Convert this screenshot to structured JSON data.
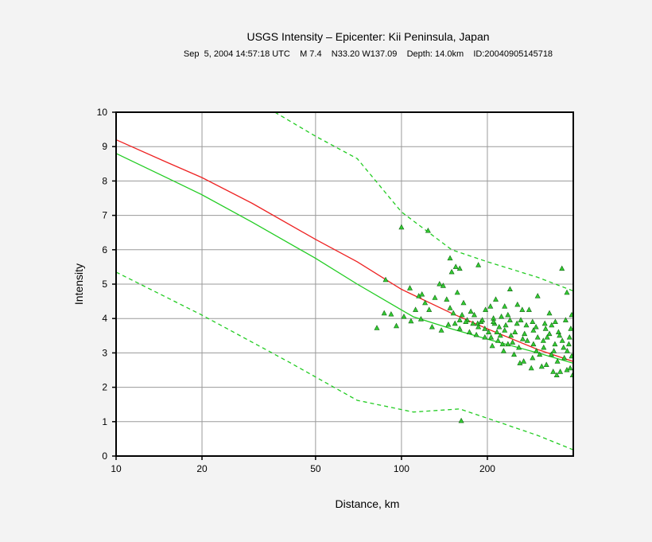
{
  "chart_data": {
    "type": "scatter",
    "title": "USGS Intensity –  Epicenter: Kii Peninsula, Japan",
    "subtitle": "Sep  5, 2004 14:57:18 UTC    M 7.4    N33.20 W137.09    Depth: 14.0km    ID:20040905145718",
    "xlabel": "Distance, km",
    "ylabel": "Intensity",
    "x_scale": "log",
    "xlim": [
      10,
      400
    ],
    "ylim": [
      0,
      10
    ],
    "x_ticks": [
      10,
      20,
      50,
      100,
      200
    ],
    "y_ticks": [
      0,
      1,
      2,
      3,
      4,
      5,
      6,
      7,
      8,
      9,
      10
    ],
    "x_tick_labels": [
      "10",
      "20",
      "50",
      "100",
      "200"
    ],
    "y_tick_labels": [
      "0",
      "1",
      "2",
      "3",
      "4",
      "5",
      "6",
      "7",
      "8",
      "9",
      "10"
    ],
    "grid": true,
    "colors": {
      "red_curve": "#ee2222",
      "green_curve": "#22cc22",
      "marker_fill": "#33cc33",
      "marker_edge": "#116611",
      "grid": "#9a9a9a"
    },
    "series": [
      {
        "style": "solid",
        "color": "#ee2222",
        "x": [
          10,
          15,
          20,
          30,
          50,
          70,
          100,
          150,
          200,
          300,
          400
        ],
        "y": [
          9.2,
          8.55,
          8.1,
          7.35,
          6.3,
          5.65,
          4.85,
          4.15,
          3.7,
          3.1,
          2.75
        ]
      },
      {
        "style": "solid",
        "color": "#22cc22",
        "x": [
          10,
          15,
          20,
          30,
          50,
          70,
          100,
          110,
          150,
          200,
          300,
          400
        ],
        "y": [
          8.8,
          8.1,
          7.6,
          6.8,
          5.75,
          5.0,
          4.25,
          4.05,
          3.7,
          3.4,
          3.0,
          2.7
        ]
      },
      {
        "style": "dashed",
        "color": "#22cc22",
        "x": [
          36,
          50,
          70,
          100,
          150,
          200,
          300,
          400
        ],
        "y": [
          10,
          9.3,
          8.65,
          7.1,
          6.0,
          5.65,
          5.2,
          4.8
        ]
      },
      {
        "style": "dashed",
        "color": "#22cc22",
        "x": [
          10,
          20,
          40,
          70,
          110,
          160,
          200,
          300,
          400
        ],
        "y": [
          5.35,
          4.1,
          2.75,
          1.62,
          1.28,
          1.37,
          1.1,
          0.6,
          0.18
        ]
      }
    ],
    "points": [
      [
        100,
        6.65
      ],
      [
        124,
        6.55
      ],
      [
        186,
        5.55
      ],
      [
        148,
        5.75
      ],
      [
        155,
        5.5
      ],
      [
        150,
        5.35
      ],
      [
        160,
        5.45
      ],
      [
        88,
        5.12
      ],
      [
        107,
        4.88
      ],
      [
        115,
        4.65
      ],
      [
        118,
        4.7
      ],
      [
        121,
        4.45
      ],
      [
        125,
        4.25
      ],
      [
        131,
        4.6
      ],
      [
        136,
        5.0
      ],
      [
        140,
        4.95
      ],
      [
        144,
        4.55
      ],
      [
        148,
        4.3
      ],
      [
        152,
        4.15
      ],
      [
        157,
        4.75
      ],
      [
        163,
        4.1
      ],
      [
        165,
        4.45
      ],
      [
        170,
        3.95
      ],
      [
        175,
        4.2
      ],
      [
        180,
        4.1
      ],
      [
        185,
        3.85
      ],
      [
        190,
        3.9
      ],
      [
        197,
        4.25
      ],
      [
        205,
        4.35
      ],
      [
        214,
        4.55
      ],
      [
        220,
        3.75
      ],
      [
        230,
        4.35
      ],
      [
        240,
        4.85
      ],
      [
        255,
        4.4
      ],
      [
        265,
        4.25
      ],
      [
        280,
        4.25
      ],
      [
        300,
        4.65
      ],
      [
        330,
        4.15
      ],
      [
        365,
        5.45
      ],
      [
        380,
        4.75
      ],
      [
        395,
        4.1
      ],
      [
        82,
        3.72
      ],
      [
        87,
        4.15
      ],
      [
        92,
        4.12
      ],
      [
        96,
        3.78
      ],
      [
        102,
        4.05
      ],
      [
        108,
        3.92
      ],
      [
        112,
        4.25
      ],
      [
        117,
        3.98
      ],
      [
        128,
        3.75
      ],
      [
        138,
        3.65
      ],
      [
        146,
        3.82
      ],
      [
        160,
        3.7
      ],
      [
        173,
        3.6
      ],
      [
        183,
        3.52
      ],
      [
        196,
        3.45
      ],
      [
        208,
        3.2
      ],
      [
        218,
        3.35
      ],
      [
        228,
        3.05
      ],
      [
        236,
        3.25
      ],
      [
        248,
        2.95
      ],
      [
        258,
        3.15
      ],
      [
        268,
        2.75
      ],
      [
        276,
        3.35
      ],
      [
        288,
        2.85
      ],
      [
        297,
        3.05
      ],
      [
        305,
        2.95
      ],
      [
        315,
        3.15
      ],
      [
        322,
        2.65
      ],
      [
        335,
        2.95
      ],
      [
        345,
        3.25
      ],
      [
        352,
        2.75
      ],
      [
        360,
        2.45
      ],
      [
        372,
        2.85
      ],
      [
        381,
        3.05
      ],
      [
        390,
        2.55
      ],
      [
        398,
        2.35
      ],
      [
        340,
        2.45
      ],
      [
        310,
        2.6
      ],
      [
        285,
        2.55
      ],
      [
        260,
        2.7
      ],
      [
        350,
        2.35
      ],
      [
        380,
        2.5
      ],
      [
        395,
        2.9
      ],
      [
        366,
        3.35
      ],
      [
        355,
        3.6
      ],
      [
        330,
        3.55
      ],
      [
        320,
        3.7
      ],
      [
        300,
        3.45
      ],
      [
        290,
        3.65
      ],
      [
        270,
        3.55
      ],
      [
        250,
        3.6
      ],
      [
        245,
        3.3
      ],
      [
        232,
        3.8
      ],
      [
        222,
        3.5
      ],
      [
        212,
        3.85
      ],
      [
        202,
        3.6
      ],
      [
        192,
        3.95
      ],
      [
        210,
        4.0
      ],
      [
        236,
        4.1
      ],
      [
        262,
        3.95
      ],
      [
        288,
        3.9
      ],
      [
        318,
        3.85
      ],
      [
        346,
        3.9
      ],
      [
        376,
        3.95
      ],
      [
        392,
        3.7
      ],
      [
        386,
        3.25
      ],
      [
        370,
        3.15
      ],
      [
        342,
        3.05
      ],
      [
        314,
        3.35
      ],
      [
        290,
        3.25
      ],
      [
        266,
        3.4
      ],
      [
        242,
        3.5
      ],
      [
        226,
        3.25
      ],
      [
        216,
        3.6
      ],
      [
        206,
        3.45
      ],
      [
        196,
        3.7
      ],
      [
        186,
        3.75
      ],
      [
        178,
        3.85
      ],
      [
        168,
        3.9
      ],
      [
        160,
        3.95
      ],
      [
        154,
        3.85
      ],
      [
        210,
        3.9
      ],
      [
        224,
        4.05
      ],
      [
        230,
        3.65
      ],
      [
        240,
        3.95
      ],
      [
        254,
        3.85
      ],
      [
        274,
        3.8
      ],
      [
        296,
        3.75
      ],
      [
        324,
        3.45
      ],
      [
        336,
        3.8
      ],
      [
        358,
        3.5
      ],
      [
        388,
        3.45
      ],
      [
        162,
        1.02
      ]
    ]
  }
}
